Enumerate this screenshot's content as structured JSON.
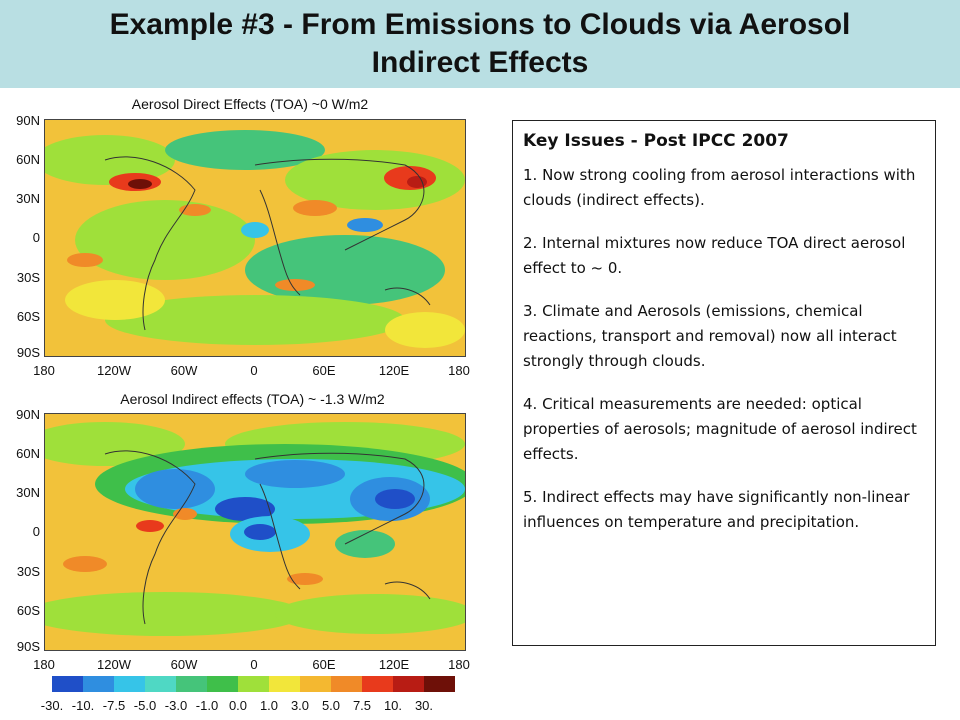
{
  "header": {
    "title_line1": "Example #3 - From Emissions to Clouds via Aerosol",
    "title_line2": "Indirect Effects"
  },
  "maps": [
    {
      "caption": "Aerosol Direct Effects (TOA) ~0 W/m2",
      "y_labels": [
        "90N",
        "60N",
        "30N",
        "0",
        "30S",
        "60S",
        "90S"
      ],
      "x_labels": [
        "180",
        "120W",
        "60W",
        "0",
        "60E",
        "120E",
        "180"
      ]
    },
    {
      "caption": "Aerosol Indirect effects (TOA) ~ -1.3 W/m2",
      "y_labels": [
        "90N",
        "60N",
        "30N",
        "0",
        "30S",
        "60S",
        "90S"
      ],
      "x_labels": [
        "180",
        "120W",
        "60W",
        "0",
        "60E",
        "120E",
        "180"
      ]
    }
  ],
  "colorbar": {
    "labels": [
      "-30.",
      "-10.",
      "-7.5",
      "-5.0",
      "-3.0",
      "-1.0",
      "0.0",
      "1.0",
      "3.0",
      "5.0",
      "7.5",
      "10.",
      "30."
    ],
    "colors": [
      "#1f4fc8",
      "#2f8ee0",
      "#36c4e8",
      "#4fd8c4",
      "#45c47a",
      "#3fbf4a",
      "#9fe03a",
      "#f2e63a",
      "#f4b830",
      "#f08a28",
      "#e83a1c",
      "#b81c14",
      "#6e1008"
    ]
  },
  "key_issues": {
    "heading": "Key Issues - Post  IPCC 2007",
    "items": [
      "1. Now strong cooling from aerosol interactions with clouds (indirect effects).",
      "2. Internal mixtures now reduce TOA direct aerosol effect to ~ 0.",
      "3. Climate and Aerosols (emissions, chemical reactions, transport and removal) now all interact strongly through clouds.",
      "4. Critical measurements are needed: optical properties of aerosols; magnitude of aerosol indirect effects.",
      "5. Indirect effects may have significantly non-linear influences on temperature and precipitation."
    ]
  }
}
